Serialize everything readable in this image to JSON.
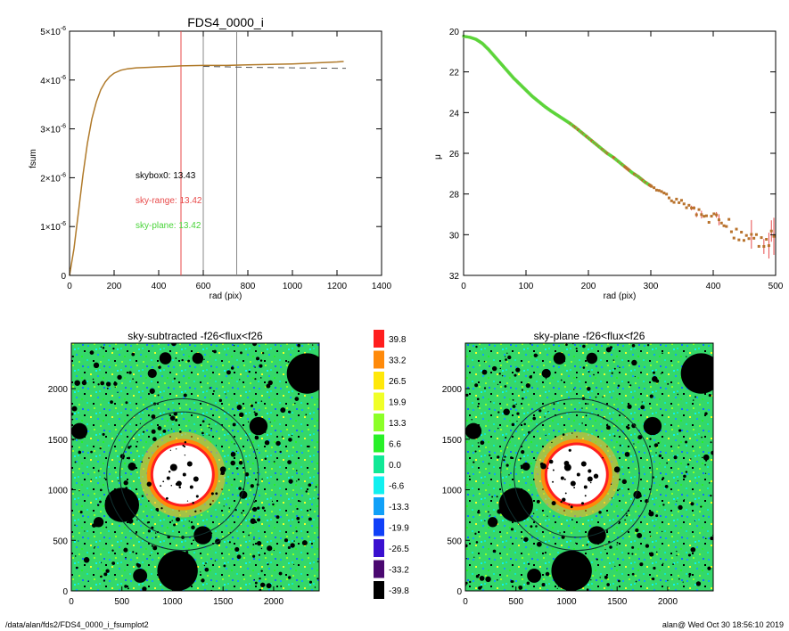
{
  "colors": {
    "fsum_curve": "#b07a2a",
    "dashed_curve": "#555555",
    "red_line": "#e84a4a",
    "gray_line": "#888888",
    "mu_green": "#5cd43a",
    "mu_orange": "#b8722c",
    "mu_red": "#e84a4a"
  },
  "chart_data": [
    {
      "type": "line",
      "title": "FDS4_0000_i",
      "xlabel": "rad (pix)",
      "ylabel": "fsum",
      "xlim": [
        0,
        1400
      ],
      "ylim": [
        0,
        5e-06
      ],
      "xticks": [
        "0",
        "200",
        "400",
        "600",
        "800",
        "1000",
        "1200",
        "1400"
      ],
      "yticks": [
        {
          "value": 0,
          "mant": "0",
          "exp": ""
        },
        {
          "value": 1e-06,
          "mant": "1×10",
          "exp": "-6"
        },
        {
          "value": 2e-06,
          "mant": "2×10",
          "exp": "-6"
        },
        {
          "value": 3e-06,
          "mant": "3×10",
          "exp": "-6"
        },
        {
          "value": 4e-06,
          "mant": "4×10",
          "exp": "-6"
        },
        {
          "value": 5e-06,
          "mant": "5×10",
          "exp": "-6"
        }
      ],
      "series": [
        {
          "style": "solid",
          "x": [
            0,
            20,
            40,
            60,
            80,
            100,
            120,
            140,
            160,
            180,
            200,
            230,
            260,
            300,
            350,
            400,
            450,
            500,
            600,
            700,
            800,
            900,
            1000,
            1100,
            1200,
            1230
          ],
          "y": [
            0,
            5.5e-07,
            1.3e-06,
            2.05e-06,
            2.7e-06,
            3.2e-06,
            3.55e-06,
            3.8e-06,
            3.96e-06,
            4.07e-06,
            4.14e-06,
            4.2e-06,
            4.23e-06,
            4.25e-06,
            4.26e-06,
            4.27e-06,
            4.28e-06,
            4.29e-06,
            4.3e-06,
            4.3e-06,
            4.31e-06,
            4.32e-06,
            4.33e-06,
            4.35e-06,
            4.37e-06,
            4.38e-06
          ]
        },
        {
          "style": "dashed",
          "x": [
            600,
            700,
            800,
            900,
            1000,
            1100,
            1200,
            1240
          ],
          "y": [
            4.28e-06,
            4.27e-06,
            4.26e-06,
            4.255e-06,
            4.25e-06,
            4.245e-06,
            4.24e-06,
            4.24e-06
          ]
        }
      ],
      "vlines": [
        {
          "x": 500,
          "color": "red"
        },
        {
          "x": 600,
          "color": "gray"
        },
        {
          "x": 750,
          "color": "gray"
        }
      ],
      "annotations": [
        {
          "label": "skybox0: 13.43",
          "color": "black"
        },
        {
          "label": "sky-range: 13.42",
          "color": "red"
        },
        {
          "label": "sky-plane: 13.42",
          "color": "green"
        }
      ]
    },
    {
      "type": "scatter",
      "title": "",
      "xlabel": "rad (pix)",
      "ylabel": "μ",
      "xlim": [
        0,
        500
      ],
      "ylim": [
        32,
        20
      ],
      "xticks": [
        "0",
        "100",
        "200",
        "300",
        "400",
        "500"
      ],
      "yticks": [
        "20",
        "22",
        "24",
        "26",
        "28",
        "30",
        "32"
      ],
      "profile_points": [
        [
          0,
          20.25
        ],
        [
          10,
          20.3
        ],
        [
          20,
          20.4
        ],
        [
          30,
          20.6
        ],
        [
          40,
          20.9
        ],
        [
          50,
          21.25
        ],
        [
          60,
          21.6
        ],
        [
          70,
          21.95
        ],
        [
          80,
          22.3
        ],
        [
          90,
          22.6
        ],
        [
          100,
          22.9
        ],
        [
          110,
          23.2
        ],
        [
          120,
          23.45
        ],
        [
          130,
          23.7
        ],
        [
          140,
          23.92
        ],
        [
          150,
          24.12
        ],
        [
          160,
          24.32
        ],
        [
          170,
          24.52
        ],
        [
          180,
          24.75
        ],
        [
          190,
          25.0
        ],
        [
          200,
          25.25
        ],
        [
          210,
          25.5
        ],
        [
          220,
          25.75
        ],
        [
          230,
          26.0
        ],
        [
          240,
          26.2
        ],
        [
          250,
          26.45
        ],
        [
          260,
          26.7
        ],
        [
          270,
          26.95
        ],
        [
          280,
          27.15
        ],
        [
          290,
          27.4
        ],
        [
          300,
          27.6
        ],
        [
          310,
          27.8
        ],
        [
          320,
          28.0
        ],
        [
          330,
          28.2
        ],
        [
          340,
          28.35
        ],
        [
          350,
          28.5
        ],
        [
          360,
          28.75
        ],
        [
          370,
          28.9
        ],
        [
          380,
          29.05
        ],
        [
          390,
          29.2
        ],
        [
          400,
          29.3
        ],
        [
          410,
          29.45
        ],
        [
          420,
          29.55
        ],
        [
          430,
          29.7
        ],
        [
          440,
          29.8
        ],
        [
          450,
          29.95
        ],
        [
          460,
          30.05
        ],
        [
          470,
          30.15
        ],
        [
          480,
          30.25
        ],
        [
          490,
          30.3
        ],
        [
          500,
          30.4
        ]
      ]
    },
    {
      "type": "heatmap",
      "title": "sky-subtracted -f26<flux<f26",
      "xticks": [
        "0",
        "500",
        "1000",
        "1500",
        "2000"
      ],
      "yticks": [
        "0",
        "500",
        "1000",
        "1500",
        "2000"
      ],
      "xlim": [
        0,
        2450
      ],
      "ylim": [
        0,
        2450
      ],
      "circles": [
        {
          "cx": 1100,
          "cy": 1150,
          "r": 620
        },
        {
          "cx": 1100,
          "cy": 1150,
          "r": 750
        }
      ]
    },
    {
      "type": "heatmap",
      "title": "sky-plane -f26<flux<f26",
      "xticks": [
        "0",
        "500",
        "1000",
        "1500",
        "2000"
      ],
      "yticks": [
        "0",
        "500",
        "1000",
        "1500",
        "2000"
      ],
      "xlim": [
        0,
        2450
      ],
      "ylim": [
        0,
        2450
      ],
      "circles": [
        {
          "cx": 1100,
          "cy": 1150,
          "r": 620
        },
        {
          "cx": 1100,
          "cy": 1150,
          "r": 750
        }
      ]
    }
  ],
  "colorbar": [
    {
      "label": "39.8",
      "color": "#ff1e1e"
    },
    {
      "label": "33.2",
      "color": "#ff8a0a"
    },
    {
      "label": "26.5",
      "color": "#ffe80a"
    },
    {
      "label": "19.9",
      "color": "#f0ff28"
    },
    {
      "label": "13.3",
      "color": "#8cff28"
    },
    {
      "label": "6.6",
      "color": "#28f028"
    },
    {
      "label": "0.0",
      "color": "#10e896"
    },
    {
      "label": "-6.6",
      "color": "#10f0f0"
    },
    {
      "label": "-13.3",
      "color": "#10a0f8"
    },
    {
      "label": "-19.9",
      "color": "#1040f8"
    },
    {
      "label": "-26.5",
      "color": "#3a10d0"
    },
    {
      "label": "-33.2",
      "color": "#4a0870"
    },
    {
      "label": "-39.8",
      "color": "#000000"
    }
  ],
  "footer": {
    "left": "/data/alan/fds2/FDS4_0000_i_fsumplot2",
    "right": "alan@  Wed Oct 30 18:56:10 2019"
  }
}
